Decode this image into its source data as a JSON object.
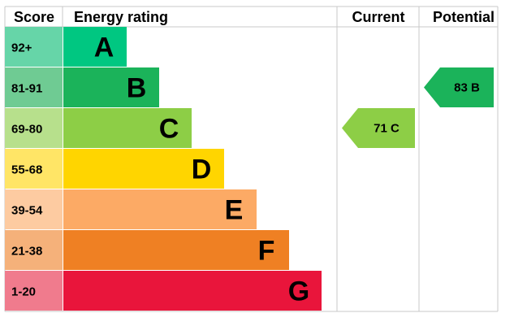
{
  "chart_data": {
    "type": "bar",
    "headers": {
      "score": "Score",
      "rating": "Energy rating",
      "current": "Current",
      "potential": "Potential"
    },
    "bands": [
      {
        "score": "92+",
        "letter": "A",
        "band_color": "#00c781",
        "score_color": "#66d5a8"
      },
      {
        "score": "81-91",
        "letter": "B",
        "band_color": "#1bb35a",
        "score_color": "#6fcb93"
      },
      {
        "score": "69-80",
        "letter": "C",
        "band_color": "#8dce46",
        "score_color": "#b7e08c"
      },
      {
        "score": "55-68",
        "letter": "D",
        "band_color": "#ffd500",
        "score_color": "#ffe566"
      },
      {
        "score": "39-54",
        "letter": "E",
        "band_color": "#fcaa65",
        "score_color": "#fdcba1"
      },
      {
        "score": "21-38",
        "letter": "F",
        "band_color": "#ef8023",
        "score_color": "#f5b17a"
      },
      {
        "score": "1-20",
        "letter": "G",
        "band_color": "#e9153b",
        "score_color": "#f07b8d"
      }
    ],
    "current": {
      "value": 71,
      "letter": "C",
      "label": "71 C"
    },
    "potential": {
      "value": 83,
      "letter": "B",
      "label": "83 B"
    }
  }
}
